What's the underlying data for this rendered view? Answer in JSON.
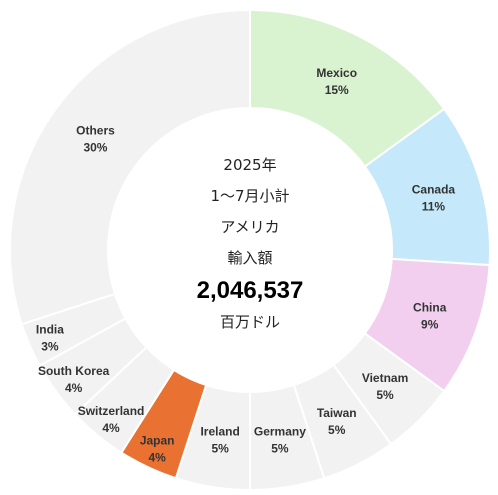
{
  "chart_data": {
    "type": "pie",
    "donut": true,
    "categories": [
      "Mexico",
      "Canada",
      "China",
      "Vietnam",
      "Taiwan",
      "Germany",
      "Ireland",
      "Japan",
      "Switzerland",
      "South Korea",
      "India",
      "Others"
    ],
    "values": [
      15,
      11,
      9,
      5,
      5,
      5,
      5,
      4,
      4,
      4,
      3,
      30
    ],
    "value_labels": [
      "15%",
      "11%",
      "9%",
      "5%",
      "5%",
      "5%",
      "5%",
      "4%",
      "4%",
      "4%",
      "3%",
      "30%"
    ],
    "colors": [
      "#d9f2d0",
      "#c5e9fb",
      "#f2cfee",
      "#f2f2f2",
      "#f2f2f2",
      "#f2f2f2",
      "#f2f2f2",
      "#e97132",
      "#f2f2f2",
      "#f2f2f2",
      "#f2f2f2",
      "#f2f2f2"
    ],
    "center": {
      "line1": "2025年",
      "line2": "1〜7月小計",
      "line3": "アメリカ",
      "line4": "輸入額",
      "value": "2,046,537",
      "unit": "百万ドル"
    }
  }
}
